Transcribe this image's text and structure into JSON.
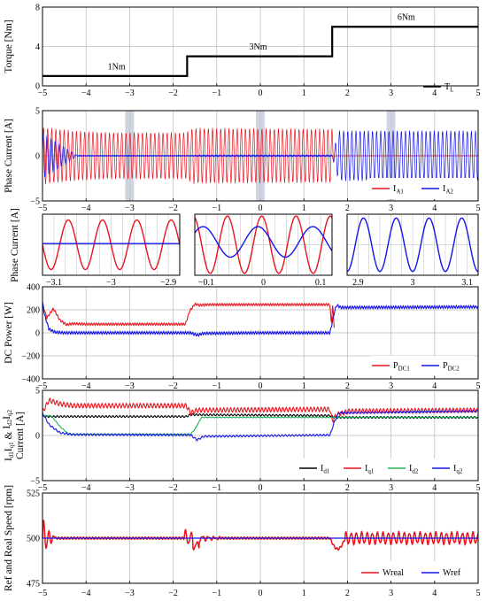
{
  "colors": {
    "red": "#e8141e",
    "blue": "#1414e6",
    "green": "#19b35a",
    "black": "#000000",
    "grid": "#b9b9b9",
    "highlight": "#c4c9da"
  },
  "chart_data": [
    {
      "id": "torque",
      "type": "line",
      "ylabel": "Torque [Nm]",
      "xlim": [
        -5,
        5
      ],
      "ylim": [
        0,
        8
      ],
      "xticks": [
        "−5",
        "−4",
        "−3",
        "−2",
        "−1",
        "0",
        "1",
        "2",
        "3",
        "4",
        "5"
      ],
      "yticks": [
        "0",
        "4",
        "8"
      ],
      "grid": true,
      "legend_position": "bottom-right",
      "series": [
        {
          "name": "T",
          "subscript": "L",
          "color": "black",
          "x": [
            -5,
            -1.68,
            -1.68,
            1.65,
            1.65,
            5
          ],
          "y": [
            1,
            1,
            3,
            3,
            6,
            6
          ]
        }
      ],
      "annotations": [
        {
          "text": "1Nm",
          "x": -3.3,
          "y": 1.5
        },
        {
          "text": "3Nm",
          "x": -0.05,
          "y": 3.5
        },
        {
          "text": "6Nm",
          "x": 3.35,
          "y": 6.5
        }
      ]
    },
    {
      "id": "phase_current",
      "type": "line",
      "ylabel": "Phase Current [A]",
      "xlim": [
        -5,
        5
      ],
      "ylim": [
        -5,
        5
      ],
      "xticks": [
        "−5",
        "−4",
        "−3",
        "−2",
        "−1",
        "0",
        "1",
        "2",
        "3",
        "4",
        "5"
      ],
      "yticks": [
        "−5",
        "0",
        "5"
      ],
      "grid": true,
      "legend_position": "bottom-right",
      "highlight_windows": [
        [
          -3.1,
          -2.9
        ],
        [
          -0.1,
          0.1
        ],
        [
          2.9,
          3.1
        ]
      ],
      "series": [
        {
          "name": "I",
          "subscript": "A1",
          "color": "red",
          "envelope": {
            "x": [
              -5,
              -4.3,
              -3.5,
              -1.7,
              -1.55,
              1.65,
              1.7,
              5
            ],
            "amp": [
              3.2,
              2.8,
              2.6,
              2.6,
              3.1,
              3.0,
              0,
              0
            ]
          }
        },
        {
          "name": "I",
          "subscript": "A2",
          "color": "blue",
          "envelope": {
            "x": [
              -5,
              -4.5,
              -4.2,
              -1.6,
              -1.4,
              1.65,
              1.8,
              5
            ],
            "amp": [
              2.6,
              1.0,
              0.05,
              0.05,
              0.12,
              0.12,
              2.8,
              2.8
            ]
          }
        }
      ]
    },
    {
      "id": "zoom_1",
      "type": "line",
      "ylabel": "Phase Current [A]",
      "xlim": [
        -3.12,
        -2.88
      ],
      "xticks": [
        "−3.1",
        "−3",
        "−2.9"
      ],
      "grid": true,
      "series": [
        {
          "name": "I_A1",
          "color": "red",
          "amp": 2.6,
          "cycles": 4,
          "phase": 0.5
        },
        {
          "name": "I_A2",
          "color": "blue",
          "amp": 0.05,
          "offset": 0.12,
          "cycles": 0,
          "phase": 0
        }
      ]
    },
    {
      "id": "zoom_2",
      "type": "line",
      "xlim": [
        -0.12,
        0.12
      ],
      "xticks": [
        "−0.1",
        "0",
        "0.1"
      ],
      "grid": true,
      "series": [
        {
          "name": "I_A1",
          "color": "red",
          "amp": 3.0,
          "cycles": 4,
          "phase": 0.3
        },
        {
          "name": "I_A2",
          "color": "blue",
          "amp": 1.6,
          "cycles": 2.5,
          "phase": 0.1,
          "offset": 0.3
        }
      ]
    },
    {
      "id": "zoom_3",
      "type": "line",
      "xlim": [
        2.88,
        3.12
      ],
      "xticks": [
        "2.9",
        "3",
        "3.1"
      ],
      "grid": true,
      "series": [
        {
          "name": "I_A2",
          "color": "blue",
          "amp": 2.8,
          "cycles": 4,
          "phase": 0.75
        }
      ]
    },
    {
      "id": "dc_power",
      "type": "line",
      "ylabel": "DC Power [W]",
      "xlim": [
        -5,
        5
      ],
      "ylim": [
        -400,
        400
      ],
      "xticks": [
        "−5",
        "−4",
        "−3",
        "−2",
        "−1",
        "0",
        "1",
        "2",
        "3",
        "4",
        "5"
      ],
      "yticks": [
        "−400",
        "−200",
        "0",
        "200",
        "400"
      ],
      "grid": true,
      "legend_position": "bottom-right",
      "series": [
        {
          "name": "P",
          "subscript": "DC1",
          "color": "red",
          "x": [
            -5,
            -4.9,
            -4.75,
            -4.6,
            -4.45,
            -4.3,
            -4.0,
            -3.0,
            -1.72,
            -1.62,
            -1.5,
            -1.4,
            -1.2,
            0,
            1.6,
            1.63,
            1.66,
            1.7,
            5
          ],
          "y": [
            250,
            130,
            210,
            110,
            70,
            80,
            75,
            75,
            75,
            190,
            250,
            240,
            245,
            245,
            245,
            60,
            250,
            20,
            0
          ],
          "ripple": 10
        },
        {
          "name": "P",
          "subscript": "DC2",
          "color": "blue",
          "x": [
            -5,
            -4.95,
            -4.85,
            -4.7,
            -4.5,
            -3.0,
            -1.6,
            -1.45,
            -1.3,
            0,
            1.6,
            1.7,
            1.75,
            1.85,
            5
          ],
          "y": [
            260,
            150,
            30,
            5,
            0,
            0,
            0,
            -20,
            -5,
            0,
            0,
            180,
            240,
            220,
            225
          ],
          "ripple": 12
        }
      ]
    },
    {
      "id": "dq_current",
      "type": "line",
      "ylabel": "I_d1 I_q1 & I_d2 I_q2 Current [A]",
      "ylabel_parts": [
        "I",
        "d1",
        "I",
        "q1",
        " & ",
        "I",
        "d2",
        "I",
        "q2"
      ],
      "ylabel_line2": "Current [A]",
      "xlim": [
        -5,
        5
      ],
      "ylim": [
        -5,
        5
      ],
      "xticks": [
        "−5",
        "−4",
        "−3",
        "−2",
        "−1",
        "0",
        "1",
        "2",
        "3",
        "4",
        "5"
      ],
      "yticks": [
        "−5",
        "0",
        "5"
      ],
      "grid": true,
      "legend_position": "bottom-right",
      "series": [
        {
          "name": "I",
          "subscript": "d1",
          "color": "black",
          "x": [
            -5,
            -1.7,
            -1.6,
            1.6,
            1.7,
            5
          ],
          "y": [
            2.1,
            2.1,
            2.3,
            2.2,
            2.0,
            2.0
          ],
          "ripple": 0.1
        },
        {
          "name": "I",
          "subscript": "q1",
          "color": "red",
          "x": [
            -5,
            -4.85,
            -4.6,
            -4.3,
            -1.7,
            -1.6,
            -1.45,
            1.6,
            1.65,
            1.75,
            1.9,
            2.05,
            5
          ],
          "y": [
            2.6,
            3.9,
            3.5,
            3.3,
            3.3,
            2.5,
            2.8,
            2.9,
            1.6,
            2.3,
            2.5,
            2.7,
            2.8
          ],
          "ripple": 0.25
        },
        {
          "name": "I",
          "subscript": "d2",
          "color": "green",
          "x": [
            -5,
            -4.8,
            -4.6,
            -4.4,
            -1.6,
            -1.5,
            -1.35,
            1.6,
            1.75,
            5
          ],
          "y": [
            2.2,
            2.2,
            1.0,
            0.15,
            0.15,
            0.7,
            2.0,
            2.0,
            2.0,
            2.0
          ],
          "ripple": 0.04
        },
        {
          "name": "I",
          "subscript": "q2",
          "color": "blue",
          "x": [
            -5,
            -4.85,
            -4.6,
            -4.3,
            -1.6,
            -1.45,
            -1.3,
            1.6,
            1.7,
            1.8,
            5
          ],
          "y": [
            2.5,
            1.2,
            0.3,
            0.1,
            0.05,
            -0.5,
            -0.1,
            0.05,
            1.5,
            2.5,
            2.7
          ],
          "ripple": 0.1
        }
      ]
    },
    {
      "id": "speed",
      "type": "line",
      "ylabel": "Ref and Real Speed [rpm]",
      "xlim": [
        -5,
        5
      ],
      "ylim": [
        475,
        525
      ],
      "xticks": [
        "−5",
        "−4",
        "−3",
        "−2",
        "−1",
        "0",
        "1",
        "2",
        "3",
        "4",
        "5"
      ],
      "yticks": [
        "475",
        "500",
        "525"
      ],
      "grid": true,
      "legend_position": "bottom-right",
      "series": [
        {
          "name": "Wreal",
          "color": "red",
          "base": 500
        },
        {
          "name": "Wref",
          "color": "blue",
          "x": [
            -5,
            5
          ],
          "y": [
            500,
            500
          ]
        }
      ]
    }
  ]
}
